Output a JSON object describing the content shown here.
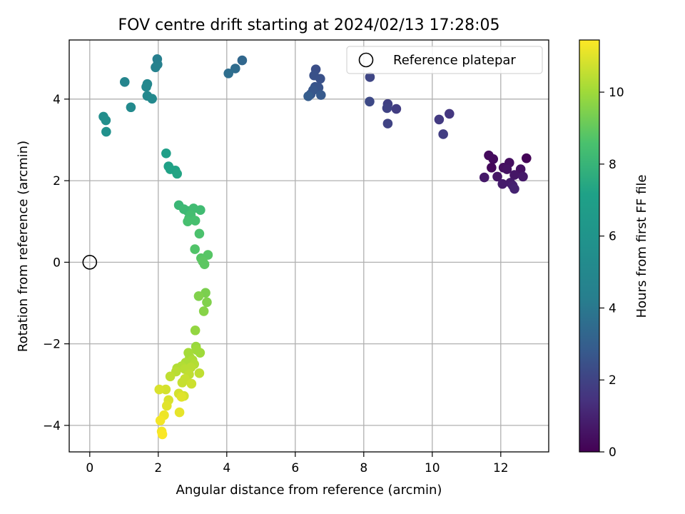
{
  "chart_data": {
    "type": "scatter",
    "title": "FOV centre drift starting at 2024/02/13 17:28:05",
    "xlabel": "Angular distance from reference (arcmin)",
    "ylabel": "Rotation from reference (arcmin)",
    "xlim": [
      -0.6,
      13.4
    ],
    "ylim": [
      -4.65,
      5.45
    ],
    "xticks": [
      0,
      2,
      4,
      6,
      8,
      10,
      12
    ],
    "yticks": [
      -4,
      -2,
      0,
      2,
      4
    ],
    "grid": true,
    "legend": {
      "position": "top-right",
      "entries": [
        "Reference platepar"
      ]
    },
    "reference_point": {
      "name": "Reference platepar",
      "x": 0,
      "y": 0
    },
    "colorbar": {
      "label": "Hours from first FF file",
      "colormap": "viridis",
      "range": [
        0,
        11.45
      ],
      "ticks": [
        0,
        2,
        4,
        6,
        8,
        10
      ]
    },
    "points": [
      {
        "x": 12.75,
        "y": 2.55,
        "c": 0.1
      },
      {
        "x": 11.65,
        "y": 2.62,
        "c": 0.3
      },
      {
        "x": 11.78,
        "y": 2.53,
        "c": 0.3
      },
      {
        "x": 12.25,
        "y": 2.44,
        "c": 0.4
      },
      {
        "x": 12.08,
        "y": 2.32,
        "c": 0.4
      },
      {
        "x": 12.18,
        "y": 2.28,
        "c": 0.5
      },
      {
        "x": 12.58,
        "y": 2.28,
        "c": 0.5
      },
      {
        "x": 11.73,
        "y": 2.32,
        "c": 0.2
      },
      {
        "x": 11.9,
        "y": 2.1,
        "c": 0.6
      },
      {
        "x": 11.52,
        "y": 2.08,
        "c": 0.7
      },
      {
        "x": 12.4,
        "y": 2.14,
        "c": 0.6
      },
      {
        "x": 12.65,
        "y": 2.1,
        "c": 0.7
      },
      {
        "x": 12.05,
        "y": 1.92,
        "c": 0.8
      },
      {
        "x": 12.28,
        "y": 1.95,
        "c": 0.8
      },
      {
        "x": 12.35,
        "y": 1.88,
        "c": 0.9
      },
      {
        "x": 12.4,
        "y": 1.8,
        "c": 1.0
      },
      {
        "x": 10.5,
        "y": 3.64,
        "c": 1.6
      },
      {
        "x": 10.2,
        "y": 3.5,
        "c": 1.7
      },
      {
        "x": 10.32,
        "y": 3.14,
        "c": 1.8
      },
      {
        "x": 8.95,
        "y": 3.76,
        "c": 1.8
      },
      {
        "x": 8.7,
        "y": 3.88,
        "c": 1.9
      },
      {
        "x": 8.68,
        "y": 3.78,
        "c": 2.0
      },
      {
        "x": 8.7,
        "y": 3.4,
        "c": 2.0
      },
      {
        "x": 8.18,
        "y": 4.54,
        "c": 2.1
      },
      {
        "x": 8.17,
        "y": 3.94,
        "c": 2.2
      },
      {
        "x": 6.6,
        "y": 4.73,
        "c": 2.4
      },
      {
        "x": 6.55,
        "y": 4.58,
        "c": 2.5
      },
      {
        "x": 6.73,
        "y": 4.5,
        "c": 2.5
      },
      {
        "x": 6.58,
        "y": 4.3,
        "c": 2.6
      },
      {
        "x": 6.68,
        "y": 4.28,
        "c": 2.6
      },
      {
        "x": 6.52,
        "y": 4.22,
        "c": 2.7
      },
      {
        "x": 6.45,
        "y": 4.12,
        "c": 2.7
      },
      {
        "x": 6.75,
        "y": 4.1,
        "c": 2.8
      },
      {
        "x": 6.38,
        "y": 4.07,
        "c": 2.9
      },
      {
        "x": 4.45,
        "y": 4.95,
        "c": 3.3
      },
      {
        "x": 4.25,
        "y": 4.75,
        "c": 3.5
      },
      {
        "x": 4.05,
        "y": 4.63,
        "c": 3.6
      },
      {
        "x": 1.97,
        "y": 4.98,
        "c": 4.3
      },
      {
        "x": 1.98,
        "y": 4.85,
        "c": 4.4
      },
      {
        "x": 1.92,
        "y": 4.78,
        "c": 4.5
      },
      {
        "x": 1.02,
        "y": 4.42,
        "c": 4.8
      },
      {
        "x": 1.68,
        "y": 4.37,
        "c": 4.9
      },
      {
        "x": 1.65,
        "y": 4.3,
        "c": 5.0
      },
      {
        "x": 1.68,
        "y": 4.08,
        "c": 5.0
      },
      {
        "x": 1.82,
        "y": 4.01,
        "c": 5.1
      },
      {
        "x": 1.2,
        "y": 3.8,
        "c": 5.2
      },
      {
        "x": 0.4,
        "y": 3.57,
        "c": 5.5
      },
      {
        "x": 0.47,
        "y": 3.48,
        "c": 5.6
      },
      {
        "x": 0.48,
        "y": 3.2,
        "c": 5.7
      },
      {
        "x": 2.23,
        "y": 2.67,
        "c": 7.0
      },
      {
        "x": 2.3,
        "y": 2.35,
        "c": 7.1
      },
      {
        "x": 2.35,
        "y": 2.28,
        "c": 7.2
      },
      {
        "x": 2.5,
        "y": 2.25,
        "c": 7.2
      },
      {
        "x": 2.55,
        "y": 2.17,
        "c": 7.3
      },
      {
        "x": 2.6,
        "y": 1.4,
        "c": 8.1
      },
      {
        "x": 2.75,
        "y": 1.3,
        "c": 8.2
      },
      {
        "x": 2.85,
        "y": 1.26,
        "c": 8.2
      },
      {
        "x": 3.03,
        "y": 1.32,
        "c": 8.3
      },
      {
        "x": 3.23,
        "y": 1.28,
        "c": 8.3
      },
      {
        "x": 2.95,
        "y": 1.16,
        "c": 8.4
      },
      {
        "x": 2.9,
        "y": 1.08,
        "c": 8.4
      },
      {
        "x": 3.08,
        "y": 1.02,
        "c": 8.5
      },
      {
        "x": 2.86,
        "y": 1.0,
        "c": 8.5
      },
      {
        "x": 3.2,
        "y": 0.7,
        "c": 8.6
      },
      {
        "x": 3.07,
        "y": 0.32,
        "c": 8.7
      },
      {
        "x": 3.45,
        "y": 0.18,
        "c": 8.8
      },
      {
        "x": 3.25,
        "y": 0.1,
        "c": 8.8
      },
      {
        "x": 3.3,
        "y": 0.02,
        "c": 8.9
      },
      {
        "x": 3.35,
        "y": -0.05,
        "c": 8.9
      },
      {
        "x": 3.38,
        "y": -0.75,
        "c": 9.4
      },
      {
        "x": 3.18,
        "y": -0.83,
        "c": 9.5
      },
      {
        "x": 3.42,
        "y": -0.98,
        "c": 9.5
      },
      {
        "x": 3.33,
        "y": -1.2,
        "c": 9.6
      },
      {
        "x": 3.08,
        "y": -1.67,
        "c": 9.8
      },
      {
        "x": 3.1,
        "y": -2.07,
        "c": 9.9
      },
      {
        "x": 3.12,
        "y": -2.15,
        "c": 10.0
      },
      {
        "x": 3.22,
        "y": -2.22,
        "c": 10.0
      },
      {
        "x": 2.88,
        "y": -2.22,
        "c": 10.1
      },
      {
        "x": 2.92,
        "y": -2.33,
        "c": 10.1
      },
      {
        "x": 3.0,
        "y": -2.4,
        "c": 10.2
      },
      {
        "x": 2.8,
        "y": -2.46,
        "c": 10.2
      },
      {
        "x": 3.05,
        "y": -2.5,
        "c": 10.3
      },
      {
        "x": 2.68,
        "y": -2.55,
        "c": 10.3
      },
      {
        "x": 2.55,
        "y": -2.6,
        "c": 10.3
      },
      {
        "x": 2.95,
        "y": -2.58,
        "c": 10.4
      },
      {
        "x": 2.78,
        "y": -2.62,
        "c": 10.4
      },
      {
        "x": 2.52,
        "y": -2.68,
        "c": 10.4
      },
      {
        "x": 3.2,
        "y": -2.72,
        "c": 10.5
      },
      {
        "x": 2.9,
        "y": -2.75,
        "c": 10.5
      },
      {
        "x": 2.35,
        "y": -2.8,
        "c": 10.5
      },
      {
        "x": 2.78,
        "y": -2.86,
        "c": 10.6
      },
      {
        "x": 2.7,
        "y": -2.95,
        "c": 10.6
      },
      {
        "x": 2.97,
        "y": -2.98,
        "c": 10.7
      },
      {
        "x": 2.6,
        "y": -3.22,
        "c": 10.8
      },
      {
        "x": 2.75,
        "y": -3.28,
        "c": 10.8
      },
      {
        "x": 2.22,
        "y": -3.12,
        "c": 10.8
      },
      {
        "x": 2.03,
        "y": -3.12,
        "c": 10.9
      },
      {
        "x": 2.3,
        "y": -3.38,
        "c": 10.9
      },
      {
        "x": 2.68,
        "y": -3.3,
        "c": 11.0
      },
      {
        "x": 2.25,
        "y": -3.52,
        "c": 11.0
      },
      {
        "x": 2.62,
        "y": -3.68,
        "c": 11.1
      },
      {
        "x": 2.17,
        "y": -3.75,
        "c": 11.2
      },
      {
        "x": 2.06,
        "y": -3.88,
        "c": 11.3
      },
      {
        "x": 2.1,
        "y": -4.15,
        "c": 11.3
      },
      {
        "x": 2.12,
        "y": -4.22,
        "c": 11.4
      }
    ]
  }
}
